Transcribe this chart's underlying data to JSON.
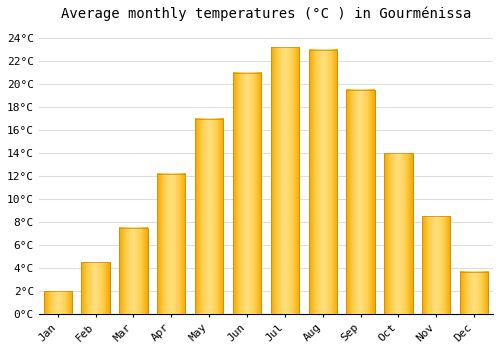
{
  "title": "Average monthly temperatures (°C ) in Gourménissa",
  "months": [
    "Jan",
    "Feb",
    "Mar",
    "Apr",
    "May",
    "Jun",
    "Jul",
    "Aug",
    "Sep",
    "Oct",
    "Nov",
    "Dec"
  ],
  "values": [
    2.0,
    4.5,
    7.5,
    12.2,
    17.0,
    21.0,
    23.2,
    23.0,
    19.5,
    14.0,
    8.5,
    3.7
  ],
  "bar_color_center": "#FFD050",
  "bar_color_edge": "#F5A800",
  "background_color": "#FFFFFF",
  "grid_color": "#DDDDDD",
  "ylim": [
    0,
    25
  ],
  "yticks": [
    0,
    2,
    4,
    6,
    8,
    10,
    12,
    14,
    16,
    18,
    20,
    22,
    24
  ],
  "title_fontsize": 10,
  "tick_fontsize": 8,
  "font_family": "monospace"
}
